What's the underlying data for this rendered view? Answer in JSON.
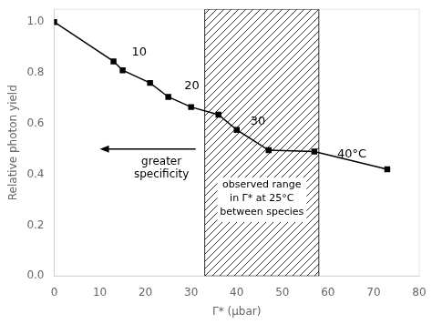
{
  "chart_data": {
    "type": "line",
    "x": [
      0,
      13,
      15,
      21,
      25,
      30,
      36,
      40,
      47,
      57,
      73
    ],
    "values": [
      1.0,
      0.845,
      0.81,
      0.76,
      0.705,
      0.665,
      0.635,
      0.575,
      0.495,
      0.49,
      0.42
    ],
    "color": "#000000",
    "marker": "square",
    "xlabel": "Γ* (μbar)",
    "ylabel": "Relative photon yield",
    "xlim": [
      0,
      80
    ],
    "ylim": [
      0.0,
      1.05
    ],
    "xticks": [
      0,
      10,
      20,
      30,
      40,
      50,
      60,
      70,
      80
    ],
    "yticks": [
      {
        "value": 0,
        "label": "0.0"
      },
      0.2,
      0.4,
      0.6,
      0.8,
      {
        "value": 1,
        "label": "1.0"
      }
    ],
    "grid": false,
    "legend": false,
    "annotations": [
      {
        "type": "region",
        "xmin": 33,
        "xmax": 58,
        "text": "observed range\nin Γ* at 25°C\nbetween species",
        "text_x": 45.5,
        "text_y": 0.3
      },
      {
        "type": "text",
        "text": "10",
        "x": 17,
        "y": 0.855
      },
      {
        "type": "text",
        "text": "20",
        "x": 28.5,
        "y": 0.725
      },
      {
        "type": "text",
        "text": "30",
        "x": 43,
        "y": 0.585
      },
      {
        "type": "text",
        "text": "40°C",
        "x": 62,
        "y": 0.455
      },
      {
        "type": "arrow",
        "x_start": 31,
        "x_end": 10,
        "y": 0.5,
        "text": "greater\nspecificity",
        "text_x": 23.5,
        "text_y": 0.47
      }
    ]
  }
}
